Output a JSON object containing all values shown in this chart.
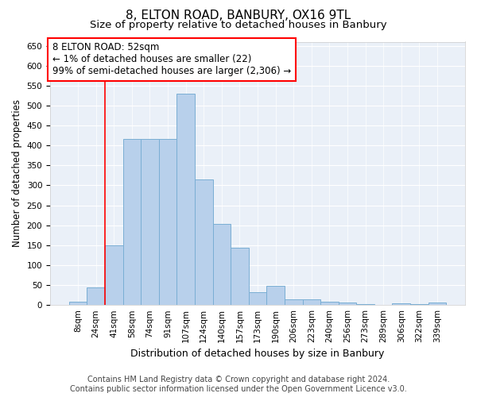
{
  "title1": "8, ELTON ROAD, BANBURY, OX16 9TL",
  "title2": "Size of property relative to detached houses in Banbury",
  "xlabel": "Distribution of detached houses by size in Banbury",
  "ylabel": "Number of detached properties",
  "categories": [
    "8sqm",
    "24sqm",
    "41sqm",
    "58sqm",
    "74sqm",
    "91sqm",
    "107sqm",
    "124sqm",
    "140sqm",
    "157sqm",
    "173sqm",
    "190sqm",
    "206sqm",
    "223sqm",
    "240sqm",
    "256sqm",
    "273sqm",
    "289sqm",
    "306sqm",
    "322sqm",
    "339sqm"
  ],
  "values": [
    8,
    44,
    150,
    416,
    417,
    417,
    530,
    315,
    204,
    143,
    33,
    48,
    15,
    14,
    8,
    6,
    2,
    1,
    5,
    2,
    6
  ],
  "bar_color": "#b8d0eb",
  "bar_edge_color": "#7aaed4",
  "annotation_line1": "8 ELTON ROAD: 52sqm",
  "annotation_line2": "← 1% of detached houses are smaller (22)",
  "annotation_line3": "99% of semi-detached houses are larger (2,306) →",
  "annotation_box_color": "white",
  "annotation_box_edge_color": "red",
  "vline_x": 1.5,
  "vline_color": "red",
  "ylim": [
    0,
    660
  ],
  "yticks": [
    0,
    50,
    100,
    150,
    200,
    250,
    300,
    350,
    400,
    450,
    500,
    550,
    600,
    650
  ],
  "background_color": "#eaf0f8",
  "footer1": "Contains HM Land Registry data © Crown copyright and database right 2024.",
  "footer2": "Contains public sector information licensed under the Open Government Licence v3.0.",
  "title1_fontsize": 11,
  "title2_fontsize": 9.5,
  "xlabel_fontsize": 9,
  "ylabel_fontsize": 8.5,
  "tick_fontsize": 7.5,
  "annotation_fontsize": 8.5,
  "footer_fontsize": 7
}
